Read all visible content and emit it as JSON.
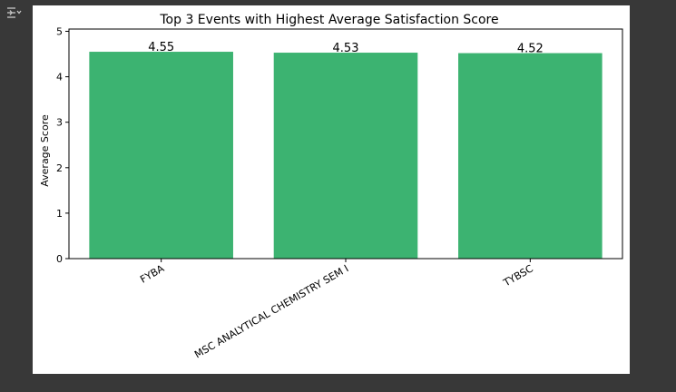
{
  "output_toggle_icon": "output-collapse-icon",
  "chart_data": {
    "type": "bar",
    "title": "Top 3 Events with Highest Average Satisfaction Score",
    "xlabel": "",
    "ylabel": "Average Score",
    "categories": [
      "FYBA",
      "MSC ANALYTICAL CHEMISTRY SEM I",
      "TYBSC"
    ],
    "values": [
      4.55,
      4.53,
      4.52
    ],
    "data_labels": [
      "4.55",
      "4.53",
      "4.52"
    ],
    "ylim": [
      0,
      5.05
    ],
    "yticks": [
      0,
      1,
      2,
      3,
      4,
      5
    ],
    "ytick_labels": [
      "0",
      "1",
      "2",
      "3",
      "4",
      "5"
    ],
    "bar_color": "#3cb371",
    "grid": false,
    "legend": "none"
  }
}
